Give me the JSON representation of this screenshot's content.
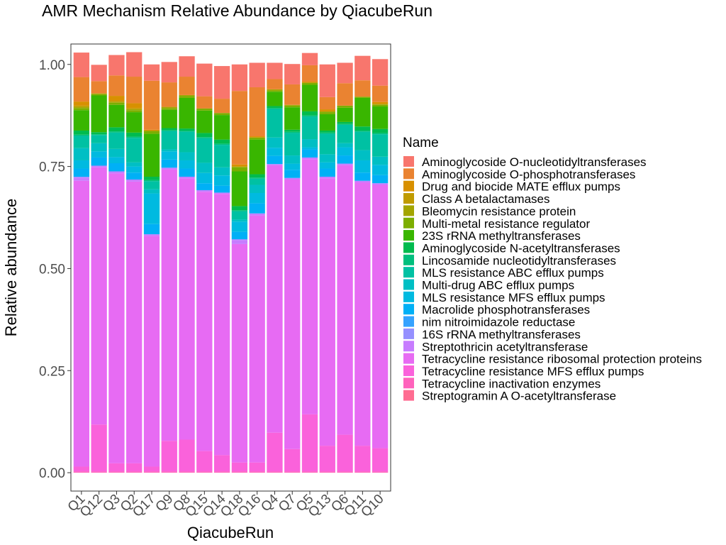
{
  "chart_data": {
    "type": "bar",
    "stacked": true,
    "title": "AMR Mechanism Relative Abundance by QiacubeRun",
    "xlabel": "QiacubeRun",
    "ylabel": "Relative abundance",
    "ylim": [
      -0.045,
      1.05
    ],
    "yticks": [
      0.0,
      0.25,
      0.5,
      0.75,
      1.0
    ],
    "ytick_labels": [
      "0.00",
      "0.25",
      "0.50",
      "0.75",
      "1.00"
    ],
    "grid": false,
    "legend_title": "Name",
    "legend_position": "right",
    "categories": [
      "Q1",
      "Q12",
      "Q3",
      "Q2",
      "Q17",
      "Q9",
      "Q8",
      "Q15",
      "Q14",
      "Q18",
      "Q16",
      "Q4",
      "Q7",
      "Q5",
      "Q13",
      "Q6",
      "Q11",
      "Q10"
    ],
    "series": [
      {
        "name": "Aminoglycoside O-nucleotidyltransferases",
        "color": "#F8766D",
        "values": [
          0.06,
          0.04,
          0.05,
          0.06,
          0.04,
          0.05,
          0.05,
          0.08,
          0.08,
          0.065,
          0.06,
          0.04,
          0.05,
          0.03,
          0.08,
          0.05,
          0.06,
          0.065
        ]
      },
      {
        "name": "Aminoglycoside O-phosphotransferases",
        "color": "#EA8331",
        "values": [
          0.06,
          0.03,
          0.05,
          0.065,
          0.12,
          0.06,
          0.045,
          0.03,
          0.035,
          0.18,
          0.12,
          0.025,
          0.05,
          0.04,
          0.03,
          0.055,
          0.04,
          0.04
        ]
      },
      {
        "name": "Drug and biocide MATE efflux pumps",
        "color": "#D89000",
        "values": [
          0.01,
          0,
          0.012,
          0.012,
          0.003,
          0,
          0,
          0,
          0,
          0.005,
          0.003,
          0,
          0,
          0.003,
          0.005,
          0,
          0,
          0.005
        ]
      },
      {
        "name": "Class A betalactamases",
        "color": "#C09B00",
        "values": [
          0.003,
          0,
          0.003,
          0.003,
          0,
          0,
          0,
          0,
          0,
          0,
          0,
          0,
          0,
          0,
          0,
          0,
          0,
          0
        ]
      },
      {
        "name": "Bleomycin resistance protein",
        "color": "#A3A500",
        "values": [
          0.003,
          0.002,
          0.002,
          0.002,
          0,
          0.003,
          0.002,
          0,
          0,
          0.002,
          0,
          0.003,
          0.002,
          0,
          0.002,
          0,
          0,
          0.002
        ]
      },
      {
        "name": "Multi-metal resistance regulator",
        "color": "#7CAE00",
        "values": [
          0.005,
          0.003,
          0.005,
          0.005,
          0.007,
          0.004,
          0.005,
          0.005,
          0.005,
          0.01,
          0.005,
          0.003,
          0.004,
          0.005,
          0.005,
          0.005,
          0.003,
          0.004
        ]
      },
      {
        "name": "23S rRNA methyltransferases",
        "color": "#39B600",
        "values": [
          0.05,
          0.09,
          0.055,
          0.05,
          0.105,
          0.045,
          0.075,
          0.055,
          0.06,
          0.085,
          0.085,
          0.035,
          0.055,
          0.065,
          0.04,
          0.035,
          0.07,
          0.055
        ]
      },
      {
        "name": "Aminoglycoside N-acetyltransferases",
        "color": "#00BB4E",
        "values": [
          0.01,
          0.005,
          0.01,
          0.01,
          0.008,
          0.005,
          0.005,
          0.01,
          0.01,
          0.01,
          0.008,
          0.005,
          0.005,
          0.01,
          0.005,
          0.005,
          0.01,
          0.01
        ]
      },
      {
        "name": "Lincosamide nucleotidyltransferases",
        "color": "#00BF7D",
        "values": [
          0.003,
          0.002,
          0.003,
          0.003,
          0.003,
          0.002,
          0.003,
          0.003,
          0.003,
          0.003,
          0.003,
          0.002,
          0.003,
          0.003,
          0.003,
          0.002,
          0.003,
          0.003
        ]
      },
      {
        "name": "MLS resistance ABC efflux pumps",
        "color": "#00C1A3",
        "values": [
          0.03,
          0.02,
          0.04,
          0.06,
          0.02,
          0.045,
          0.05,
          0.06,
          0.055,
          0.02,
          0.015,
          0.07,
          0.055,
          0.055,
          0.05,
          0.045,
          0.045,
          0.055
        ]
      },
      {
        "name": "Multi-drug ABC efflux pumps",
        "color": "#00BFC4",
        "values": [
          0.03,
          0.02,
          0.02,
          0.01,
          0.01,
          0.005,
          0.02,
          0.025,
          0.02,
          0.005,
          0.02,
          0.025,
          0.02,
          0.02,
          0.02,
          0.01,
          0.025,
          0.02
        ]
      },
      {
        "name": "MLS resistance MFS efflux pumps",
        "color": "#00BAE0",
        "values": [
          0.02,
          0.015,
          0.015,
          0.015,
          0.075,
          0.02,
          0.02,
          0.025,
          0.025,
          0.025,
          0.025,
          0.02,
          0.015,
          0.005,
          0.015,
          0.02,
          0.03,
          0.025
        ]
      },
      {
        "name": "Macrolide phosphotransferases",
        "color": "#00B0F6",
        "values": [
          0.02,
          0.02,
          0.02,
          0.017,
          0.025,
          0.02,
          0.02,
          0.017,
          0.017,
          0.018,
          0.025,
          0.02,
          0.02,
          0.02,
          0.02,
          0.02,
          0.02,
          0.02
        ]
      },
      {
        "name": "nim nitroimidazole reductase",
        "color": "#35A2FF",
        "values": [
          0,
          0,
          0,
          0,
          0,
          0,
          0,
          0,
          0,
          0,
          0,
          0,
          0,
          0,
          0,
          0,
          0,
          0
        ]
      },
      {
        "name": "16S rRNA methyltransferases",
        "color": "#9590FF",
        "values": [
          0.002,
          0,
          0,
          0,
          0,
          0,
          0,
          0,
          0,
          0.002,
          0,
          0,
          0,
          0,
          0,
          0,
          0,
          0
        ]
      },
      {
        "name": "Streptothricin acetyltransferase",
        "color": "#C77CFF",
        "values": [
          0.008,
          0.004,
          0.005,
          0.005,
          0.004,
          0.004,
          0.004,
          0.004,
          0.003,
          0.01,
          0.005,
          0.003,
          0.004,
          0.004,
          0.004,
          0.004,
          0.004,
          0.004
        ]
      },
      {
        "name": "Tetracycline resistance ribosomal protection proteins",
        "color": "#E76BF3",
        "values": [
          0.7,
          0.63,
          0.71,
          0.69,
          0.565,
          0.665,
          0.64,
          0.635,
          0.64,
          0.535,
          0.605,
          0.655,
          0.66,
          0.625,
          0.655,
          0.66,
          0.645,
          0.645
        ]
      },
      {
        "name": "Tetracycline resistance MFS efflux pumps",
        "color": "#FA62DB",
        "values": [
          0.012,
          0.115,
          0.02,
          0.02,
          0.012,
          0.075,
          0.078,
          0.05,
          0.04,
          0.022,
          0.022,
          0.095,
          0.055,
          0.14,
          0.063,
          0.09,
          0.063,
          0.057
        ]
      },
      {
        "name": "Tetracycline inactivation enzymes",
        "color": "#FF62BC",
        "values": [
          0.003,
          0.003,
          0.003,
          0.003,
          0.003,
          0.003,
          0.003,
          0.003,
          0.003,
          0.003,
          0.003,
          0.003,
          0.003,
          0.003,
          0.003,
          0.003,
          0.003,
          0.003
        ]
      },
      {
        "name": "Streptogramin A O-acetyltransferase",
        "color": "#FF6C91",
        "values": [
          0,
          0,
          0,
          0,
          0,
          0,
          0,
          0,
          0,
          0,
          0,
          0,
          0,
          0,
          0,
          0,
          0,
          0
        ]
      }
    ]
  }
}
